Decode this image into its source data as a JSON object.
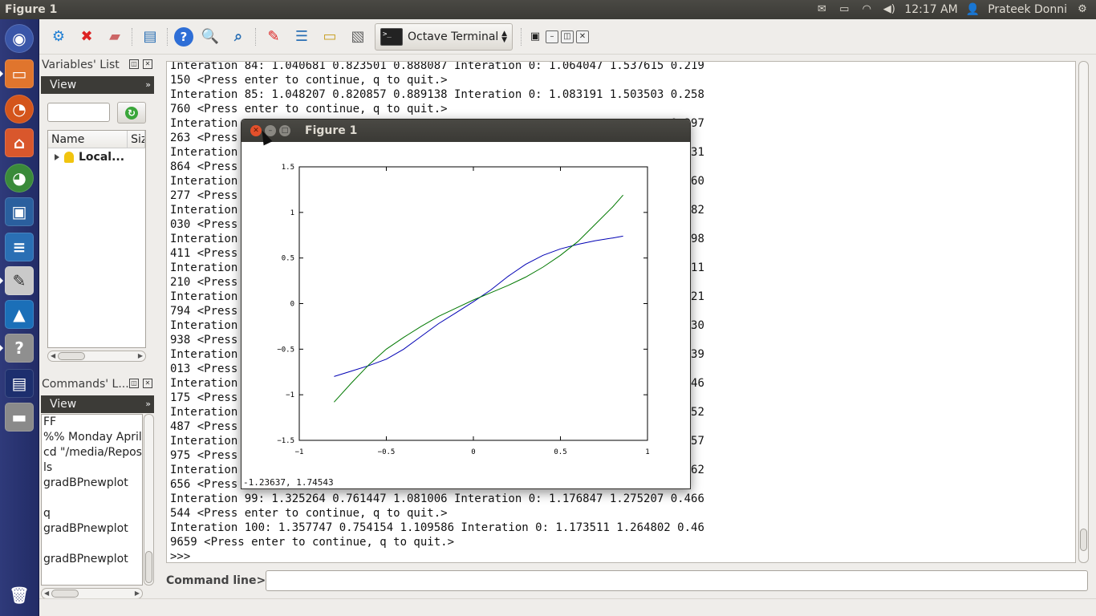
{
  "top_panel": {
    "title": "Figure 1",
    "time": "12:17 AM",
    "user": "Prateek Donni"
  },
  "launcher": {
    "items": [
      "dash",
      "files",
      "firefox",
      "software-center",
      "chrome",
      "virtualbox",
      "writer",
      "text-editor",
      "matlab",
      "help",
      "workspace",
      "drive",
      "trash"
    ]
  },
  "toolbar": {
    "terminal_label": "Octave Terminal"
  },
  "variables_panel": {
    "title": "Variables' List",
    "view_label": "View",
    "columns": [
      "Name",
      "Siz"
    ],
    "rows": [
      {
        "name": "Local..."
      }
    ]
  },
  "commands_panel": {
    "title": "Commands' L...",
    "view_label": "View",
    "entries": [
      "FF",
      "%% Monday April",
      "cd \"/media/Reposi",
      "ls",
      "gradBPnewplot",
      "",
      "q",
      "gradBPnewplot",
      "",
      "gradBPnewplot"
    ]
  },
  "terminal": {
    "lines": [
      "Interation 84: 1.040681 0.823501 0.888087 Interation 0: 1.064047 1.537615 0.219",
      "150 <Press enter to continue, q to quit.>",
      "Interation 85: 1.048207 0.820857 0.889138 Interation 0: 1.083191 1.503503 0.258",
      "760 <Press enter to continue, q to quit.>",
      "Interation                                                                0.297",
      "263 <Press",
      "Interation                                                                0.331",
      "864 <Press",
      "Interation                                                                0.360",
      "277 <Press",
      "Interation                                                                0.382",
      "030 <Press",
      "Interation                                                                0.398",
      "411 <Press",
      "Interation                                                                0.411",
      "210 <Press",
      "Interation                                                                0.421",
      "794 <Press",
      "Interation                                                                0.430",
      "938 <Press",
      "Interation                                                                0.439",
      "013 <Press",
      "Interation                                                                0.446",
      "175 <Press",
      "Interation                                                                0.452",
      "487 <Press",
      "Interation                                                                0.457",
      "975 <Press",
      "Interation                                                                0.462",
      "656 <Press",
      "Interation 99: 1.325264 0.761447 1.081006 Interation 0: 1.176847 1.275207 0.466",
      "544 <Press enter to continue, q to quit.>",
      "Interation 100: 1.357747 0.754154 1.109586 Interation 0: 1.173511 1.264802 0.46",
      "9659 <Press enter to continue, q to quit.>",
      ">>>"
    ]
  },
  "command_line": {
    "label": "Command line>>",
    "value": ""
  },
  "figure": {
    "title": "Figure 1",
    "coords_readout": "-1.23637,  1.74543"
  },
  "chart_data": {
    "type": "line",
    "title": "",
    "xlabel": "",
    "ylabel": "",
    "xlim": [
      -1,
      1
    ],
    "ylim": [
      -1.5,
      1.5
    ],
    "xticks": [
      "-1",
      "-0.5",
      "0",
      "0.5",
      "1"
    ],
    "yticks": [
      "-1.5",
      "-1",
      "-0.5",
      "0",
      "0.5",
      "1",
      "1.5"
    ],
    "grid": false,
    "series": [
      {
        "color": "#0000b4",
        "x": [
          -0.8,
          -0.7,
          -0.6,
          -0.5,
          -0.4,
          -0.3,
          -0.2,
          -0.1,
          0.0,
          0.1,
          0.2,
          0.3,
          0.4,
          0.5,
          0.6,
          0.7,
          0.8,
          0.86
        ],
        "y": [
          -0.8,
          -0.74,
          -0.68,
          -0.61,
          -0.5,
          -0.36,
          -0.22,
          -0.1,
          0.02,
          0.15,
          0.3,
          0.43,
          0.53,
          0.6,
          0.65,
          0.69,
          0.72,
          0.74
        ]
      },
      {
        "color": "#007800",
        "x": [
          -0.8,
          -0.7,
          -0.6,
          -0.5,
          -0.4,
          -0.3,
          -0.2,
          -0.1,
          0.0,
          0.1,
          0.2,
          0.3,
          0.4,
          0.5,
          0.6,
          0.7,
          0.8,
          0.86
        ],
        "y": [
          -1.08,
          -0.87,
          -0.67,
          -0.5,
          -0.37,
          -0.25,
          -0.14,
          -0.05,
          0.04,
          0.12,
          0.2,
          0.29,
          0.4,
          0.53,
          0.68,
          0.87,
          1.06,
          1.19
        ]
      }
    ]
  }
}
